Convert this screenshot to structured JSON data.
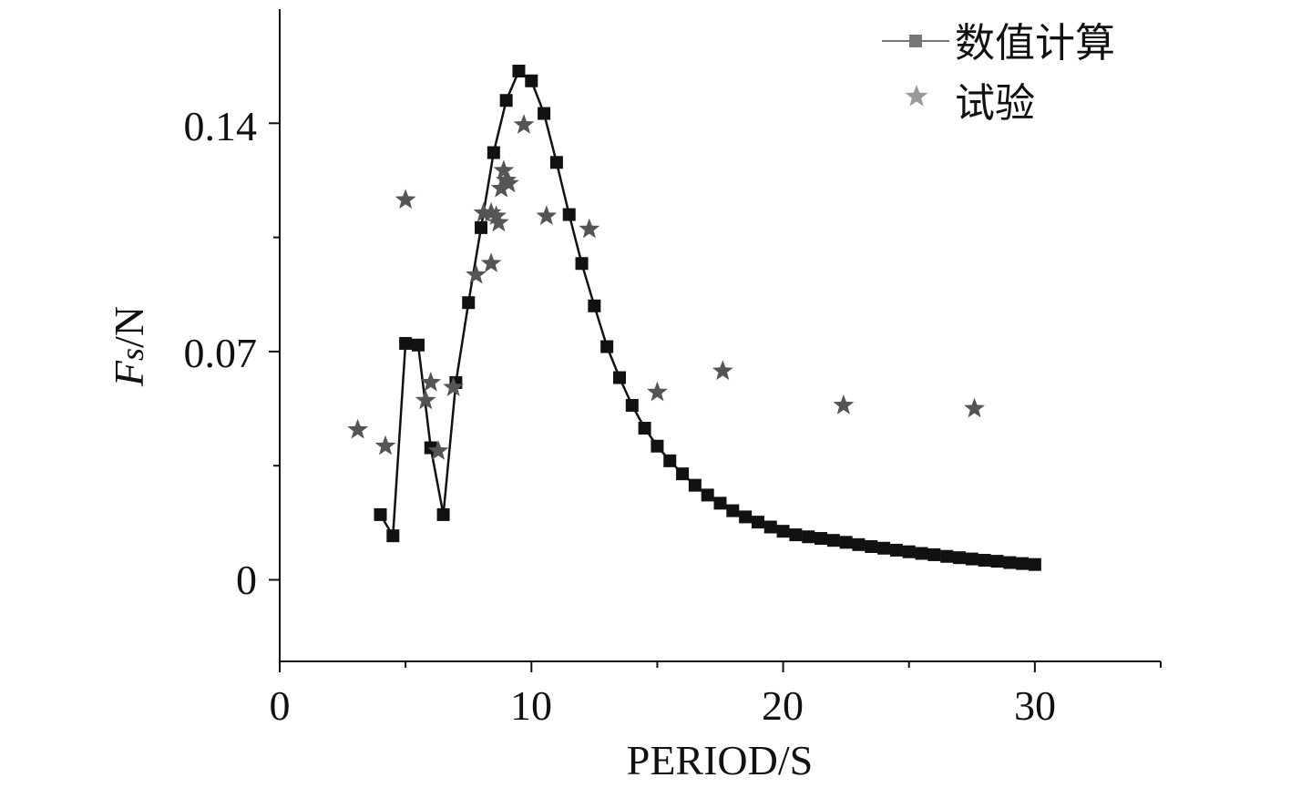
{
  "chart_data": {
    "type": "line",
    "xlabel": "PERIOD/S",
    "ylabel_main": "F",
    "ylabel_sub": "s",
    "ylabel_unit": "/N",
    "x_ticks": [
      "0",
      "10",
      "20",
      "30"
    ],
    "y_ticks": [
      "0",
      "0.07",
      "0.14"
    ],
    "xlim": [
      0,
      35
    ],
    "ylim": [
      -0.025,
      0.175
    ],
    "grid": false,
    "legend_position": "top-right",
    "colors": {
      "line": "#111111",
      "marker": "#111111",
      "star": "#555555",
      "legend_line": "#777777",
      "legend_star": "#999999"
    },
    "series": [
      {
        "name": "数值计算",
        "style": "line-square",
        "points": [
          [
            4.0,
            0.02
          ],
          [
            4.5,
            0.0135
          ],
          [
            5.0,
            0.0725
          ],
          [
            5.5,
            0.072
          ],
          [
            6.0,
            0.0405
          ],
          [
            6.5,
            0.02
          ],
          [
            7.0,
            0.0605
          ],
          [
            7.5,
            0.085
          ],
          [
            8.0,
            0.108
          ],
          [
            8.5,
            0.131
          ],
          [
            9.0,
            0.147
          ],
          [
            9.5,
            0.156
          ],
          [
            10.0,
            0.153
          ],
          [
            10.5,
            0.143
          ],
          [
            11.0,
            0.128
          ],
          [
            11.5,
            0.112
          ],
          [
            12.0,
            0.097
          ],
          [
            12.5,
            0.084
          ],
          [
            13.0,
            0.0715
          ],
          [
            13.5,
            0.062
          ],
          [
            14.0,
            0.0535
          ],
          [
            14.5,
            0.0465
          ],
          [
            15.0,
            0.041
          ],
          [
            15.5,
            0.0365
          ],
          [
            16.0,
            0.0325
          ],
          [
            16.5,
            0.029
          ],
          [
            17.0,
            0.026
          ],
          [
            17.5,
            0.0235
          ],
          [
            18.0,
            0.0212
          ],
          [
            18.5,
            0.0193
          ],
          [
            19.0,
            0.0177
          ],
          [
            19.5,
            0.0162
          ],
          [
            20.0,
            0.0149
          ],
          [
            20.5,
            0.0138
          ],
          [
            21.0,
            0.0132
          ],
          [
            21.5,
            0.0127
          ],
          [
            22.0,
            0.0121
          ],
          [
            22.5,
            0.0115
          ],
          [
            23.0,
            0.0108
          ],
          [
            23.5,
            0.0102
          ],
          [
            24.0,
            0.0097
          ],
          [
            24.5,
            0.0091
          ],
          [
            25.0,
            0.0086
          ],
          [
            25.5,
            0.0081
          ],
          [
            26.0,
            0.0077
          ],
          [
            26.5,
            0.0072
          ],
          [
            27.0,
            0.0068
          ],
          [
            27.5,
            0.0064
          ],
          [
            28.0,
            0.006
          ],
          [
            28.5,
            0.0057
          ],
          [
            29.0,
            0.0053
          ],
          [
            29.5,
            0.005
          ],
          [
            30.0,
            0.0047
          ]
        ]
      },
      {
        "name": "试验",
        "style": "star",
        "points": [
          [
            3.1,
            0.046
          ],
          [
            4.2,
            0.041
          ],
          [
            5.0,
            0.1165
          ],
          [
            5.8,
            0.055
          ],
          [
            6.0,
            0.0605
          ],
          [
            6.3,
            0.0395
          ],
          [
            6.9,
            0.059
          ],
          [
            7.8,
            0.0935
          ],
          [
            8.1,
            0.1125
          ],
          [
            8.4,
            0.097
          ],
          [
            8.4,
            0.1125
          ],
          [
            8.6,
            0.1115
          ],
          [
            8.7,
            0.1095
          ],
          [
            8.8,
            0.12
          ],
          [
            8.9,
            0.1255
          ],
          [
            9.0,
            0.1225
          ],
          [
            9.1,
            0.1215
          ],
          [
            9.7,
            0.1395
          ],
          [
            10.6,
            0.1115
          ],
          [
            12.3,
            0.1075
          ],
          [
            15.0,
            0.0575
          ],
          [
            17.6,
            0.064
          ],
          [
            22.4,
            0.0535
          ],
          [
            27.6,
            0.0525
          ]
        ]
      }
    ]
  }
}
